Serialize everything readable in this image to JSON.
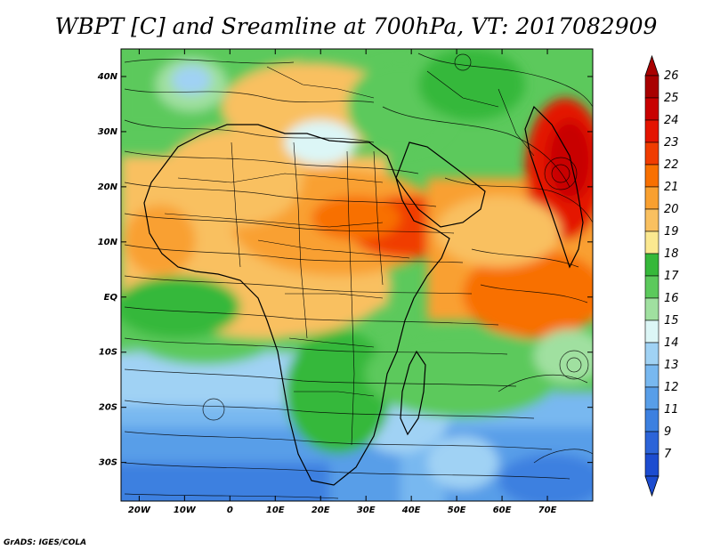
{
  "title": "WBPT [C] and Sreamline at 700hPa, VT: 2017082909",
  "credit": "GrADS: IGES/COLA",
  "map": {
    "lon_range": [
      -24,
      80
    ],
    "lat_range": [
      -37,
      45
    ],
    "lon_ticks": [
      {
        "value": -20,
        "label": "20W"
      },
      {
        "value": -10,
        "label": "10W"
      },
      {
        "value": 0,
        "label": "0"
      },
      {
        "value": 10,
        "label": "10E"
      },
      {
        "value": 20,
        "label": "20E"
      },
      {
        "value": 30,
        "label": "30E"
      },
      {
        "value": 40,
        "label": "40E"
      },
      {
        "value": 50,
        "label": "50E"
      },
      {
        "value": 60,
        "label": "60E"
      },
      {
        "value": 70,
        "label": "70E"
      }
    ],
    "lat_ticks": [
      {
        "value": 40,
        "label": "40N"
      },
      {
        "value": 30,
        "label": "30N"
      },
      {
        "value": 20,
        "label": "20N"
      },
      {
        "value": 10,
        "label": "10N"
      },
      {
        "value": 0,
        "label": "EQ"
      },
      {
        "value": -10,
        "label": "10S"
      },
      {
        "value": -20,
        "label": "20S"
      },
      {
        "value": -30,
        "label": "30S"
      }
    ]
  },
  "colorbar": {
    "levels": [
      {
        "label": "26",
        "color": "#a80000"
      },
      {
        "label": "25",
        "color": "#c80000"
      },
      {
        "label": "24",
        "color": "#e41400"
      },
      {
        "label": "23",
        "color": "#f03c00"
      },
      {
        "label": "22",
        "color": "#f87000"
      },
      {
        "label": "21",
        "color": "#f9a030"
      },
      {
        "label": "20",
        "color": "#f9c060"
      },
      {
        "label": "19",
        "color": "#fbe890"
      },
      {
        "label": "18",
        "color": "#36b83a"
      },
      {
        "label": "17",
        "color": "#5cc95c"
      },
      {
        "label": "16",
        "color": "#a0e0a0"
      },
      {
        "label": "15",
        "color": "#dcf6f6"
      },
      {
        "label": "14",
        "color": "#a0d2f4"
      },
      {
        "label": "13",
        "color": "#78b8f0"
      },
      {
        "label": "12",
        "color": "#589ee8"
      },
      {
        "label": "11",
        "color": "#3c80e0"
      },
      {
        "label": "9",
        "color": "#2c64d8"
      },
      {
        "label": "7",
        "color": "#1c4cd0"
      }
    ]
  }
}
